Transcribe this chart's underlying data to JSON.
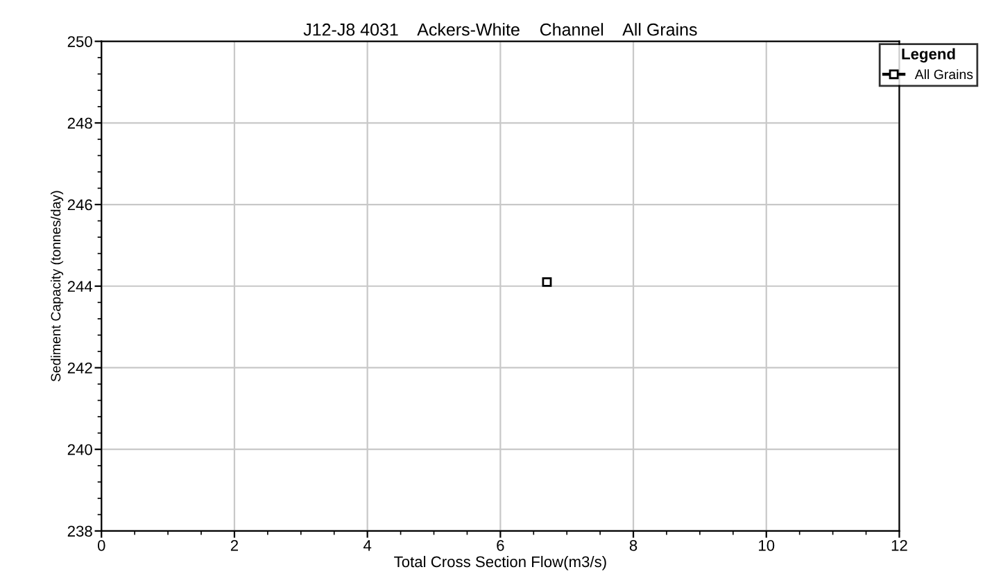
{
  "chart_data": {
    "type": "scatter",
    "title": "J12-J8 4031    Ackers-White    Channel    All Grains",
    "xlabel": "Total Cross Section Flow(m3/s)",
    "ylabel": "Sediment Capacity (tonnes/day)",
    "legend_title": "Legend",
    "x": [
      6.7
    ],
    "series": [
      {
        "name": "All Grains",
        "color": "#000000",
        "values": [
          244.1
        ]
      }
    ],
    "xlim": [
      0,
      12
    ],
    "xticks": [
      0,
      2,
      4,
      6,
      8,
      10,
      12
    ],
    "ylim": [
      238,
      250
    ],
    "yticks": [
      238,
      240,
      242,
      244,
      246,
      248,
      250
    ],
    "grid": true,
    "legend": "top right",
    "marker": "square",
    "line_style": "solid"
  }
}
